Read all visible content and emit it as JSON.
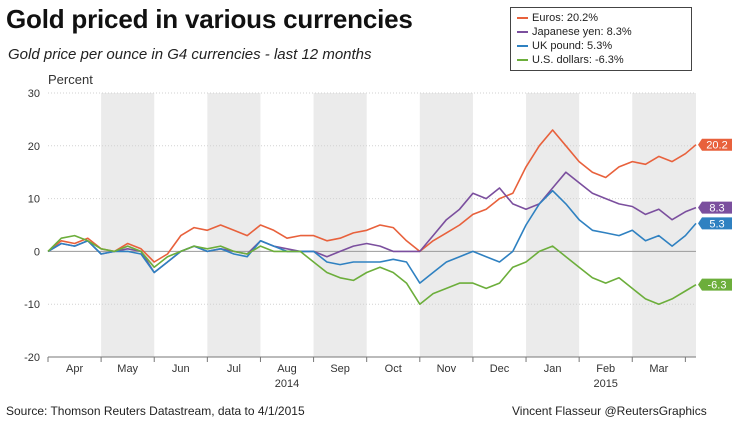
{
  "header": {
    "title": "Gold priced in various currencies",
    "subtitle": "Gold price per ounce in G4 currencies - last 12 months"
  },
  "footer": {
    "source": "Source: Thomson Reuters Datastream, data to 4/1/2015",
    "credit": "Vincent Flasseur @ReutersGraphics"
  },
  "chart_data": {
    "type": "line",
    "title": "Gold priced in various currencies",
    "subtitle": "Gold price per ounce in G4 currencies - last 12 months",
    "ylabel": "Percent",
    "xlabel": "",
    "ylim": [
      -20,
      30
    ],
    "yticks": [
      -20,
      -10,
      0,
      10,
      20,
      30
    ],
    "xlim": [
      0,
      12.2
    ],
    "month_ticks": [
      {
        "label": "Apr",
        "x": 0.5
      },
      {
        "label": "May",
        "x": 1.5
      },
      {
        "label": "Jun",
        "x": 2.5
      },
      {
        "label": "Jul",
        "x": 3.5
      },
      {
        "label": "Aug",
        "x": 4.5
      },
      {
        "label": "Sep",
        "x": 5.5
      },
      {
        "label": "Oct",
        "x": 6.5
      },
      {
        "label": "Nov",
        "x": 7.5
      },
      {
        "label": "Dec",
        "x": 8.5
      },
      {
        "label": "Jan",
        "x": 9.5
      },
      {
        "label": "Feb",
        "x": 10.5
      },
      {
        "label": "Mar",
        "x": 11.5
      }
    ],
    "year_labels": [
      {
        "label": "2014",
        "x": 4.5
      },
      {
        "label": "2015",
        "x": 10.5
      }
    ],
    "shaded_months": [
      [
        1,
        2
      ],
      [
        3,
        4
      ],
      [
        5,
        6
      ],
      [
        7,
        8
      ],
      [
        9,
        10
      ],
      [
        11,
        12.2
      ]
    ],
    "grid": true,
    "legend_position": "top-right",
    "x": [
      0,
      0.25,
      0.5,
      0.75,
      1,
      1.25,
      1.5,
      1.75,
      2,
      2.25,
      2.5,
      2.75,
      3,
      3.25,
      3.5,
      3.75,
      4,
      4.25,
      4.5,
      4.75,
      5,
      5.25,
      5.5,
      5.75,
      6,
      6.25,
      6.5,
      6.75,
      7,
      7.25,
      7.5,
      7.75,
      8,
      8.25,
      8.5,
      8.75,
      9,
      9.25,
      9.5,
      9.75,
      10,
      10.25,
      10.5,
      10.75,
      11,
      11.25,
      11.5,
      11.75,
      12,
      12.2
    ],
    "series": [
      {
        "name": "Euros",
        "legend_label": "Euros: 20.2%",
        "end_label": "20.2",
        "color": "#e8613c",
        "values": [
          0,
          2,
          1.5,
          2.5,
          0.5,
          0,
          1.5,
          0.5,
          -2,
          -0.5,
          3,
          4.5,
          4,
          5,
          4,
          3,
          5,
          4,
          2.5,
          3,
          3,
          2,
          2.5,
          3.5,
          4,
          5,
          4.5,
          2,
          0,
          2,
          3.5,
          5,
          7,
          8,
          10,
          11,
          16,
          20,
          23,
          20,
          17,
          15,
          14,
          16,
          17,
          16.5,
          18,
          17,
          18.5,
          20.2
        ]
      },
      {
        "name": "Japanese yen",
        "legend_label": "Japanese yen: 8.3%",
        "end_label": "8.3",
        "color": "#7b4f9e",
        "values": [
          0,
          1.5,
          1,
          2,
          -0.5,
          0,
          0.5,
          0,
          -4,
          -2,
          0,
          1,
          0,
          0.5,
          0,
          -0.5,
          2,
          1,
          0.5,
          0,
          0,
          -1,
          0,
          1,
          1.5,
          1,
          0,
          0,
          0,
          3,
          6,
          8,
          11,
          10,
          12,
          9,
          8,
          9,
          12,
          15,
          13,
          11,
          10,
          9,
          8.5,
          7,
          8,
          6,
          7.5,
          8.3
        ]
      },
      {
        "name": "UK pound",
        "legend_label": "UK pound: 5.3%",
        "end_label": "5.3",
        "color": "#2f81c1",
        "values": [
          0,
          1.5,
          1,
          2,
          -0.5,
          0,
          0,
          -0.5,
          -4,
          -2,
          0,
          1,
          0,
          0.5,
          -0.5,
          -1,
          2,
          1,
          0,
          0,
          0,
          -2,
          -2.5,
          -2,
          -2,
          -2,
          -1.5,
          -2,
          -6,
          -4,
          -2,
          -1,
          0,
          -1,
          -2,
          0,
          5,
          9,
          11.5,
          9,
          6,
          4,
          3.5,
          3,
          4,
          2,
          3,
          1,
          3,
          5.3
        ]
      },
      {
        "name": "U.S. dollars",
        "legend_label": "U.S. dollars: -6.3%",
        "end_label": "-6.3",
        "color": "#6cae3b",
        "values": [
          0,
          2.5,
          3,
          2,
          0.5,
          0,
          1,
          0,
          -3,
          -1,
          0,
          1,
          0.5,
          1,
          0,
          -0.5,
          1,
          0,
          0,
          0,
          -2,
          -4,
          -5,
          -5.5,
          -4,
          -3,
          -4,
          -6,
          -10,
          -8,
          -7,
          -6,
          -6,
          -7,
          -6,
          -3,
          -2,
          0,
          1,
          -1,
          -3,
          -5,
          -6,
          -5,
          -7,
          -9,
          -10,
          -9,
          -7.5,
          -6.3
        ]
      }
    ]
  }
}
